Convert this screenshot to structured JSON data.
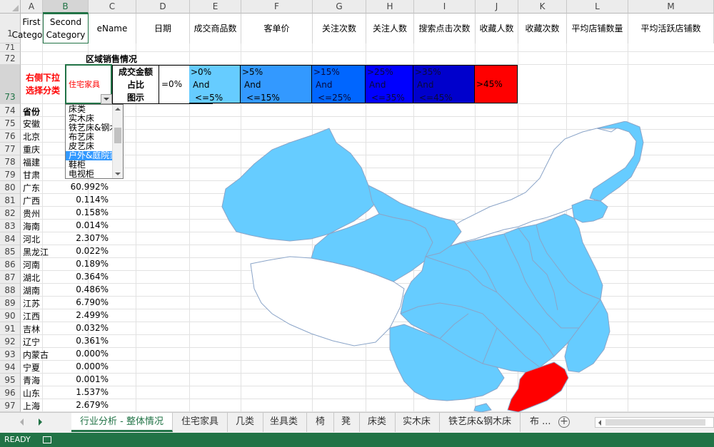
{
  "columns": [
    "A",
    "B",
    "C",
    "D",
    "E",
    "F",
    "G",
    "H",
    "I",
    "J",
    "K",
    "L",
    "M"
  ],
  "selected_column": "B",
  "header_row": {
    "row_number": "1",
    "cells": [
      "First\nCategory",
      "Second\nCategory",
      "eName",
      "日期",
      "成交商品数",
      "客单价",
      "关注次数",
      "关注人数",
      "搜索点击次数",
      "收藏人数",
      "收藏次数",
      "平均店铺数量",
      "平均活跃店铺数"
    ]
  },
  "row_numbers": {
    "r71": "71",
    "r72": "72",
    "r73": "73",
    "list": [
      "74",
      "75",
      "76",
      "77",
      "78",
      "79",
      "80",
      "81",
      "82",
      "83",
      "84",
      "85",
      "86",
      "87",
      "88",
      "89",
      "90",
      "91",
      "92",
      "93",
      "94",
      "95",
      "96",
      "97"
    ]
  },
  "section_title": "区域销售情况",
  "selector": {
    "label_line1": "右侧下拉",
    "label_line2": "选择分类",
    "value": "住宅家具"
  },
  "metric": {
    "line1": "成交金额",
    "line2": "占比",
    "line3": "图示"
  },
  "legend": [
    {
      "l1": ">0%",
      "l2": "And",
      "l3": "<=5%",
      "color": "#66ccff"
    },
    {
      "l1": ">5%",
      "l2": "And",
      "l3": "<=15%",
      "color": "#3399ff"
    },
    {
      "l1": ">15%",
      "l2": "And",
      "l3": "<=25%",
      "color": "#0066ff"
    },
    {
      "l1": ">25%",
      "l2": "And",
      "l3": "<=35%",
      "color": "#0000ff"
    },
    {
      "l1": ">35%",
      "l2": "And",
      "l3": "<=45%",
      "color": "#0000cc"
    },
    {
      "l1": ">45%",
      "l2": "",
      "l3": "",
      "color": "#ff0000"
    }
  ],
  "zero_legend": "=0%",
  "province_header": "省份",
  "provinces": [
    {
      "name": "安徽",
      "value": ""
    },
    {
      "name": "北京",
      "value": ""
    },
    {
      "name": "重庆",
      "value": ""
    },
    {
      "name": "福建",
      "value": ""
    },
    {
      "name": "甘肃",
      "value": ""
    },
    {
      "name": "广东",
      "value": "60.992%"
    },
    {
      "name": "广西",
      "value": "0.114%"
    },
    {
      "name": "贵州",
      "value": "0.158%"
    },
    {
      "name": "海南",
      "value": "0.014%"
    },
    {
      "name": "河北",
      "value": "2.307%"
    },
    {
      "name": "黑龙江",
      "value": "0.022%"
    },
    {
      "name": "河南",
      "value": "0.189%"
    },
    {
      "name": "湖北",
      "value": "0.364%"
    },
    {
      "name": "湖南",
      "value": "0.486%"
    },
    {
      "name": "江苏",
      "value": "6.790%"
    },
    {
      "name": "江西",
      "value": "2.499%"
    },
    {
      "name": "吉林",
      "value": "0.032%"
    },
    {
      "name": "辽宁",
      "value": "0.361%"
    },
    {
      "name": "内蒙古",
      "value": "0.000%"
    },
    {
      "name": "宁夏",
      "value": "0.000%"
    },
    {
      "name": "青海",
      "value": "0.001%"
    },
    {
      "name": "山东",
      "value": "1.537%"
    },
    {
      "name": "上海",
      "value": "2.679%"
    }
  ],
  "dropdown_options": [
    "床类",
    "实木床",
    "铁艺床&钢木床",
    "布艺床",
    "皮艺床",
    "户外&庭院家具",
    "鞋柜",
    "电视柜"
  ],
  "dropdown_selected_index": 5,
  "map_colors": {
    "light": "#66ccff",
    "white": "#ffffff",
    "red": "#ff0000",
    "border": "#8aa4c8"
  },
  "tabs": [
    "行业分析 - 整体情况",
    "住宅家具",
    "几类",
    "坐具类",
    "椅",
    "凳",
    "床类",
    "实木床",
    "铁艺床&钢木床",
    "布 ..."
  ],
  "active_tab": 0,
  "status": "READY"
}
